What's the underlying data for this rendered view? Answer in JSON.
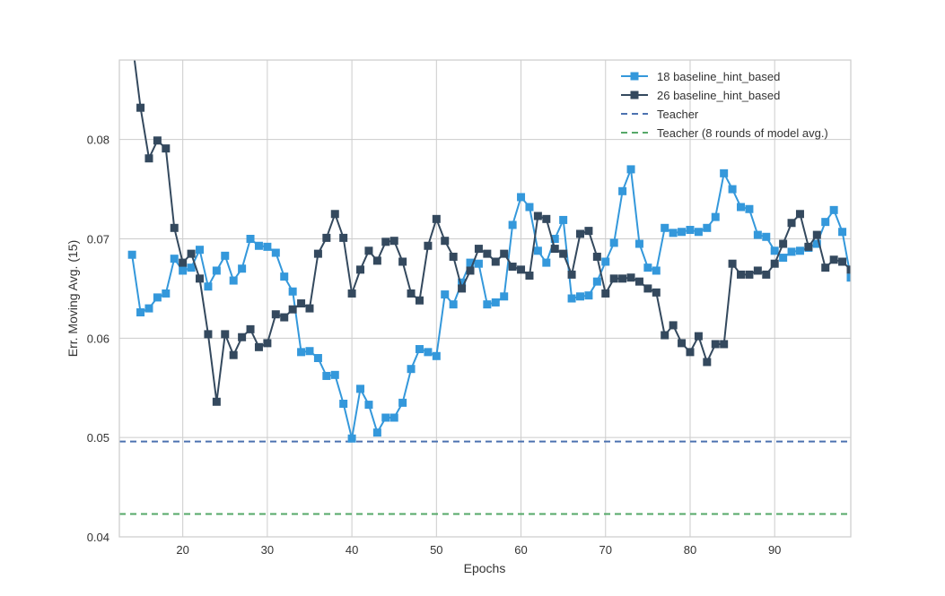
{
  "chart_data": {
    "type": "line",
    "title": "",
    "xlabel": "Epochs",
    "ylabel": "Err. Moving Avg. (15)",
    "xlim": [
      12.5,
      99
    ],
    "ylim": [
      0.04,
      0.088
    ],
    "x_ticks": [
      20,
      30,
      40,
      50,
      60,
      70,
      80,
      90
    ],
    "y_ticks": [
      0.04,
      0.05,
      0.06,
      0.07,
      0.08
    ],
    "x_tick_labels": [
      "20",
      "30",
      "40",
      "50",
      "60",
      "70",
      "80",
      "90"
    ],
    "y_tick_labels": [
      "0.04",
      "0.05",
      "0.06",
      "0.07",
      "0.08"
    ],
    "grid": true,
    "legend_position": "top-right",
    "series": [
      {
        "name": "18 baseline_hint_based",
        "color": "#3498db",
        "marker": "square",
        "x": [
          14,
          15,
          16,
          17,
          18,
          19,
          20,
          21,
          22,
          23,
          24,
          25,
          26,
          27,
          28,
          29,
          30,
          31,
          32,
          33,
          34,
          35,
          36,
          37,
          38,
          39,
          40,
          41,
          42,
          43,
          44,
          45,
          46,
          47,
          48,
          49,
          50,
          51,
          52,
          53,
          54,
          55,
          56,
          57,
          58,
          59,
          60,
          61,
          62,
          63,
          64,
          65,
          66,
          67,
          68,
          69,
          70,
          71,
          72,
          73,
          74,
          75,
          76,
          77,
          78,
          79,
          80,
          81,
          82,
          83,
          84,
          85,
          86,
          87,
          88,
          89,
          90,
          91,
          92,
          93,
          94,
          95,
          96,
          97,
          98,
          99
        ],
        "y": [
          0.0684,
          0.0626,
          0.063,
          0.0641,
          0.0645,
          0.068,
          0.0668,
          0.0671,
          0.0689,
          0.0652,
          0.0668,
          0.0683,
          0.0658,
          0.067,
          0.07,
          0.0693,
          0.0692,
          0.0686,
          0.0662,
          0.0647,
          0.0586,
          0.0587,
          0.058,
          0.0562,
          0.0563,
          0.0534,
          0.0499,
          0.0549,
          0.0533,
          0.0505,
          0.052,
          0.052,
          0.0535,
          0.0569,
          0.0589,
          0.0586,
          0.0582,
          0.0644,
          0.0634,
          0.0656,
          0.0676,
          0.0675,
          0.0634,
          0.0636,
          0.0642,
          0.0714,
          0.0742,
          0.0732,
          0.0688,
          0.0676,
          0.07,
          0.0719,
          0.064,
          0.0642,
          0.0643,
          0.0657,
          0.0677,
          0.0696,
          0.0748,
          0.077,
          0.0695,
          0.0671,
          0.0668,
          0.0711,
          0.0706,
          0.0707,
          0.0709,
          0.0707,
          0.0711,
          0.0722,
          0.0766,
          0.075,
          0.0732,
          0.073,
          0.0704,
          0.0702,
          0.0688,
          0.0681,
          0.0687,
          0.0688,
          0.0691,
          0.0695,
          0.0717,
          0.0729,
          0.0707,
          0.0661
        ]
      },
      {
        "name": "26 baseline_hint_based",
        "color": "#34495e",
        "marker": "square",
        "x": [
          13,
          14,
          15,
          16,
          17,
          18,
          19,
          20,
          21,
          22,
          23,
          24,
          25,
          26,
          27,
          28,
          29,
          30,
          31,
          32,
          33,
          34,
          35,
          36,
          37,
          38,
          39,
          40,
          41,
          42,
          43,
          44,
          45,
          46,
          47,
          48,
          49,
          50,
          51,
          52,
          53,
          54,
          55,
          56,
          57,
          58,
          59,
          60,
          61,
          62,
          63,
          64,
          65,
          66,
          67,
          68,
          69,
          70,
          71,
          72,
          73,
          74,
          75,
          76,
          77,
          78,
          79,
          80,
          81,
          82,
          83,
          84,
          85,
          86,
          87,
          88,
          89,
          90,
          91,
          92,
          93,
          94,
          95,
          96,
          97,
          98,
          99
        ],
        "y": [
          0.095,
          0.09,
          0.0832,
          0.0781,
          0.0799,
          0.0791,
          0.0711,
          0.0676,
          0.0685,
          0.066,
          0.0604,
          0.0536,
          0.0604,
          0.0583,
          0.0601,
          0.0609,
          0.0591,
          0.0595,
          0.0624,
          0.0621,
          0.0629,
          0.0635,
          0.063,
          0.0685,
          0.0701,
          0.0725,
          0.0701,
          0.0645,
          0.0669,
          0.0688,
          0.0678,
          0.0697,
          0.0698,
          0.0677,
          0.0645,
          0.0638,
          0.0693,
          0.072,
          0.0698,
          0.0682,
          0.065,
          0.0668,
          0.069,
          0.0685,
          0.0677,
          0.0685,
          0.0672,
          0.0669,
          0.0663,
          0.0723,
          0.072,
          0.069,
          0.0685,
          0.0664,
          0.0705,
          0.0708,
          0.0682,
          0.0645,
          0.066,
          0.066,
          0.0661,
          0.0657,
          0.065,
          0.0646,
          0.0603,
          0.0613,
          0.0595,
          0.0586,
          0.0602,
          0.0576,
          0.0594,
          0.0594,
          0.0675,
          0.0664,
          0.0664,
          0.0668,
          0.0664,
          0.0675,
          0.0695,
          0.0716,
          0.0725,
          0.0692,
          0.0704,
          0.0671,
          0.0679,
          0.0677,
          0.0669
        ]
      }
    ],
    "reference_lines": [
      {
        "name": "Teacher",
        "y": 0.0496,
        "color": "#4c72b0",
        "style": "dashed"
      },
      {
        "name": "Teacher (8 rounds of model avg.)",
        "y": 0.0423,
        "color": "#55a868",
        "style": "dashed"
      }
    ]
  }
}
